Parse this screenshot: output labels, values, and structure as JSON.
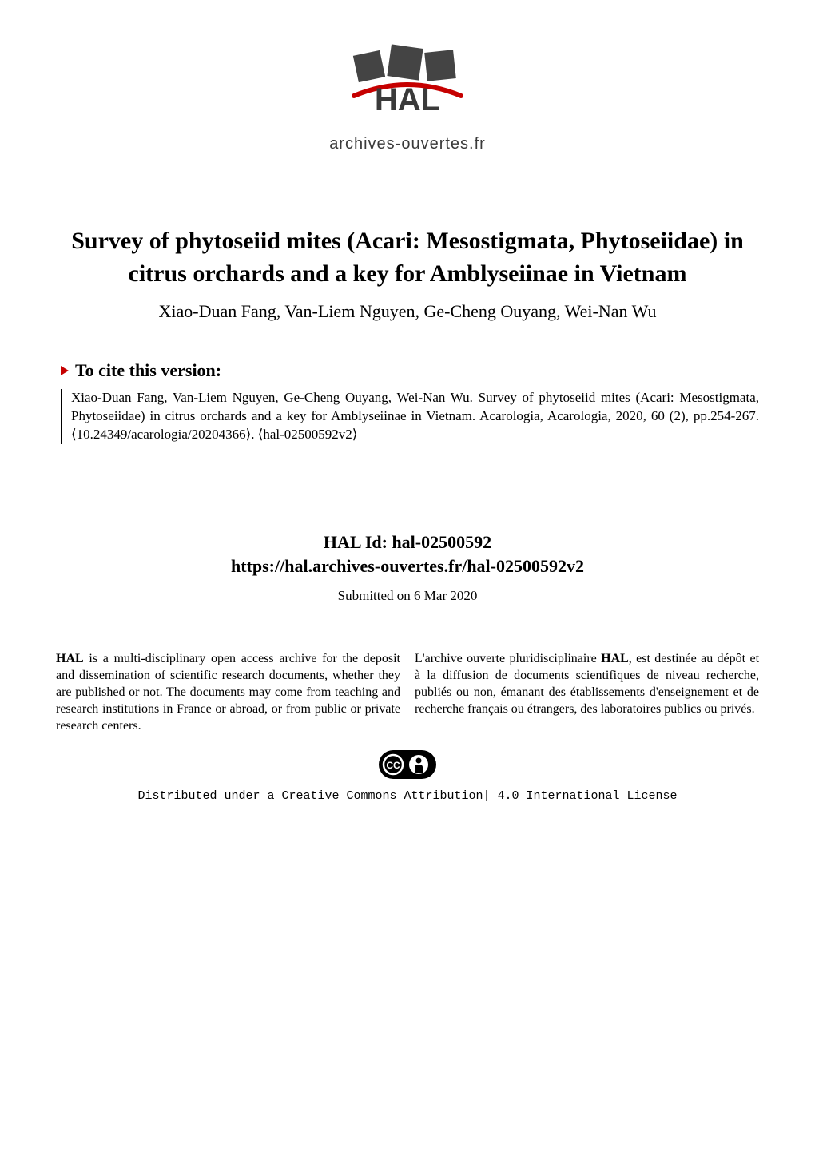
{
  "logo": {
    "main_text": "HAL",
    "subtitle": "archives-ouvertes.fr",
    "square_color": "#444444",
    "accent_color": "#c60000",
    "text_color": "#3a3a3a"
  },
  "paper": {
    "title": "Survey of phytoseiid mites (Acari: Mesostigmata, Phytoseiidae) in citrus orchards and a key for Amblyseiinae in Vietnam",
    "authors": "Xiao-Duan Fang, Van-Liem Nguyen, Ge-Cheng Ouyang, Wei-Nan Wu"
  },
  "cite": {
    "heading": "To cite this version:",
    "body": "Xiao-Duan Fang, Van-Liem Nguyen, Ge-Cheng Ouyang, Wei-Nan Wu. Survey of phytoseiid mites (Acari: Mesostigmata, Phytoseiidae) in citrus orchards and a key for Amblyseiinae in Vietnam. Acarologia, Acarologia, 2020, 60 (2), pp.254-267. ⟨10.24349/acarologia/20204366⟩. ⟨hal-02500592v2⟩"
  },
  "hal": {
    "id_label": "HAL Id: hal-02500592",
    "url": "https://hal.archives-ouvertes.fr/hal-02500592v2",
    "submitted": "Submitted on 6 Mar 2020"
  },
  "columns": {
    "left": "HAL is a multi-disciplinary open access archive for the deposit and dissemination of scientific research documents, whether they are published or not. The documents may come from teaching and research institutions in France or abroad, or from public or private research centers.",
    "right": "L'archive ouverte pluridisciplinaire HAL, est destinée au dépôt et à la diffusion de documents scientifiques de niveau recherche, publiés ou non, émanant des établissements d'enseignement et de recherche français ou étrangers, des laboratoires publics ou privés."
  },
  "left_bold_word": "HAL",
  "right_bold_word": "HAL",
  "license": {
    "prefix": "Distributed under a Creative Commons ",
    "link_text": "Attribution| 4.0 International License",
    "cc_text": "CC",
    "badge_bg": "#000000",
    "badge_fg": "#ffffff"
  },
  "colors": {
    "caret": "#c60000",
    "text": "#000000",
    "bg": "#ffffff"
  }
}
